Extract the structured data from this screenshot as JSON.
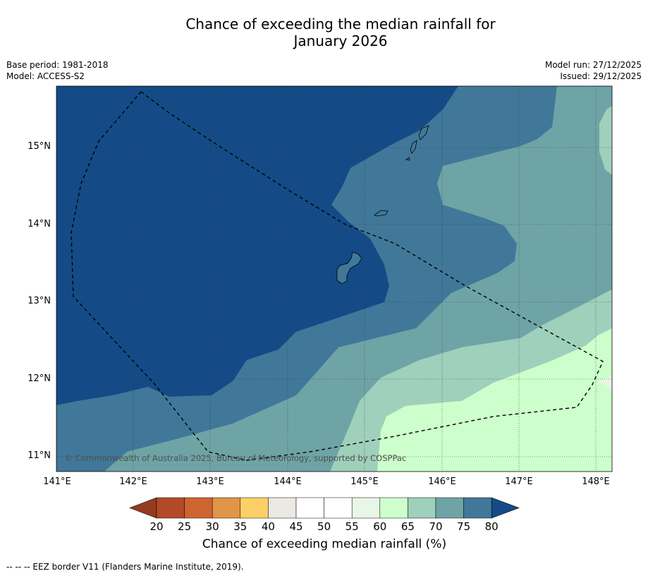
{
  "title": {
    "line1": "Chance of exceeding the median rainfall for",
    "line2": "January 2026"
  },
  "meta": {
    "base_period": "Base period: 1981-2018",
    "model": "Model: ACCESS-S2",
    "model_run": "Model run: 27/12/2025",
    "issued": "Issued: 29/12/2025"
  },
  "axes": {
    "lon_ticks": [
      "141°E",
      "142°E",
      "143°E",
      "144°E",
      "145°E",
      "146°E",
      "147°E",
      "148°E"
    ],
    "lat_ticks": [
      "15°N",
      "14°N",
      "13°N",
      "12°N",
      "11°N"
    ]
  },
  "map": {
    "copyright": "© Commonwealth of Australia 2025, Bureau of Meteorology, supported by COSPPac"
  },
  "colorbar": {
    "labels": [
      "20",
      "25",
      "30",
      "35",
      "40",
      "45",
      "50",
      "55",
      "60",
      "65",
      "70",
      "75",
      "80"
    ],
    "colors": [
      "#b34a27",
      "#cd6532",
      "#e19546",
      "#fdd067",
      "#ece8e2",
      "#ffffff",
      "#ffffff",
      "#e8f6e8",
      "#ccffcc",
      "#9fd0bb",
      "#6fa4a6",
      "#417899"
    ],
    "under_color": "#953b21",
    "over_color": "#144b86",
    "title": "Chance of exceeding median rainfall (%)"
  },
  "legend": {
    "border_line": "--  --  -- EEZ border V11 (Flanders Marine Institute, 2019)."
  }
}
